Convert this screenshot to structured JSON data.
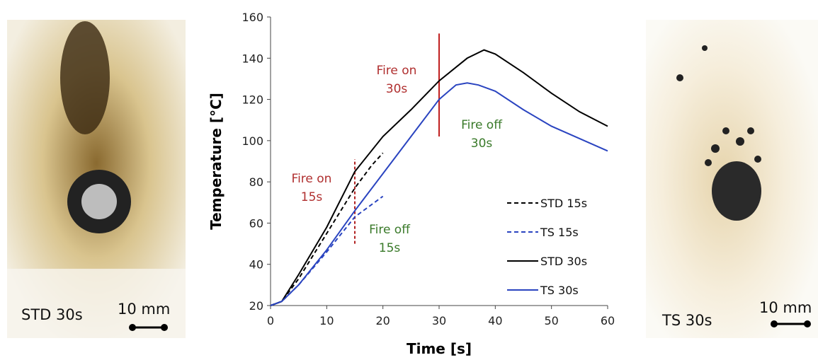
{
  "panels": {
    "left": {
      "label": "STD 30s",
      "scale": "10 mm"
    },
    "right": {
      "label": "TS 30s",
      "scale": "10 mm"
    }
  },
  "chart_data": {
    "type": "line",
    "x_label": "Time [s]",
    "y_label": "Temperature [°C]",
    "xlim": [
      0,
      60
    ],
    "xticks": [
      0,
      10,
      20,
      30,
      40,
      50,
      60
    ],
    "ylim": [
      20,
      160
    ],
    "yticks": [
      20,
      40,
      60,
      80,
      100,
      120,
      140,
      160
    ],
    "series": [
      {
        "name": "STD 15s",
        "color": "#000000",
        "dash": true,
        "x": [
          0,
          2,
          5,
          10,
          15,
          18,
          20
        ],
        "values": [
          20,
          22,
          33,
          55,
          77,
          88,
          94
        ]
      },
      {
        "name": "TS 15s",
        "color": "#2a44c0",
        "dash": true,
        "x": [
          0,
          2,
          5,
          10,
          15,
          18,
          20
        ],
        "values": [
          20,
          22,
          30,
          46,
          63,
          69,
          73
        ]
      },
      {
        "name": "STD 30s",
        "color": "#000000",
        "dash": false,
        "x": [
          0,
          2,
          5,
          10,
          15,
          20,
          25,
          30,
          35,
          38,
          40,
          45,
          50,
          55,
          60
        ],
        "values": [
          20,
          22,
          35,
          58,
          85,
          102,
          115,
          129,
          140,
          144,
          142,
          133,
          123,
          114,
          107
        ]
      },
      {
        "name": "TS 30s",
        "color": "#2a44c0",
        "dash": false,
        "x": [
          0,
          2,
          5,
          10,
          15,
          20,
          25,
          30,
          33,
          35,
          37,
          40,
          45,
          50,
          55,
          60
        ],
        "values": [
          20,
          22,
          30,
          47,
          66,
          84,
          102,
          120,
          127,
          128,
          127,
          124,
          115,
          107,
          101,
          95
        ]
      }
    ],
    "events": [
      {
        "x": 15,
        "y_range": [
          50,
          91
        ],
        "color": "#b02020",
        "dash": true
      },
      {
        "x": 30,
        "y_range": [
          102,
          152
        ],
        "color": "#c02020",
        "dash": false
      }
    ],
    "annotations": [
      {
        "lines": [
          "Fire on",
          "15s"
        ],
        "color": "#b03030"
      },
      {
        "lines": [
          "Fire off",
          "15s"
        ],
        "color": "#3a7a2a"
      },
      {
        "lines": [
          "Fire on",
          "30s"
        ],
        "color": "#b03030"
      },
      {
        "lines": [
          "Fire off",
          "30s"
        ],
        "color": "#3a7a2a"
      }
    ]
  }
}
